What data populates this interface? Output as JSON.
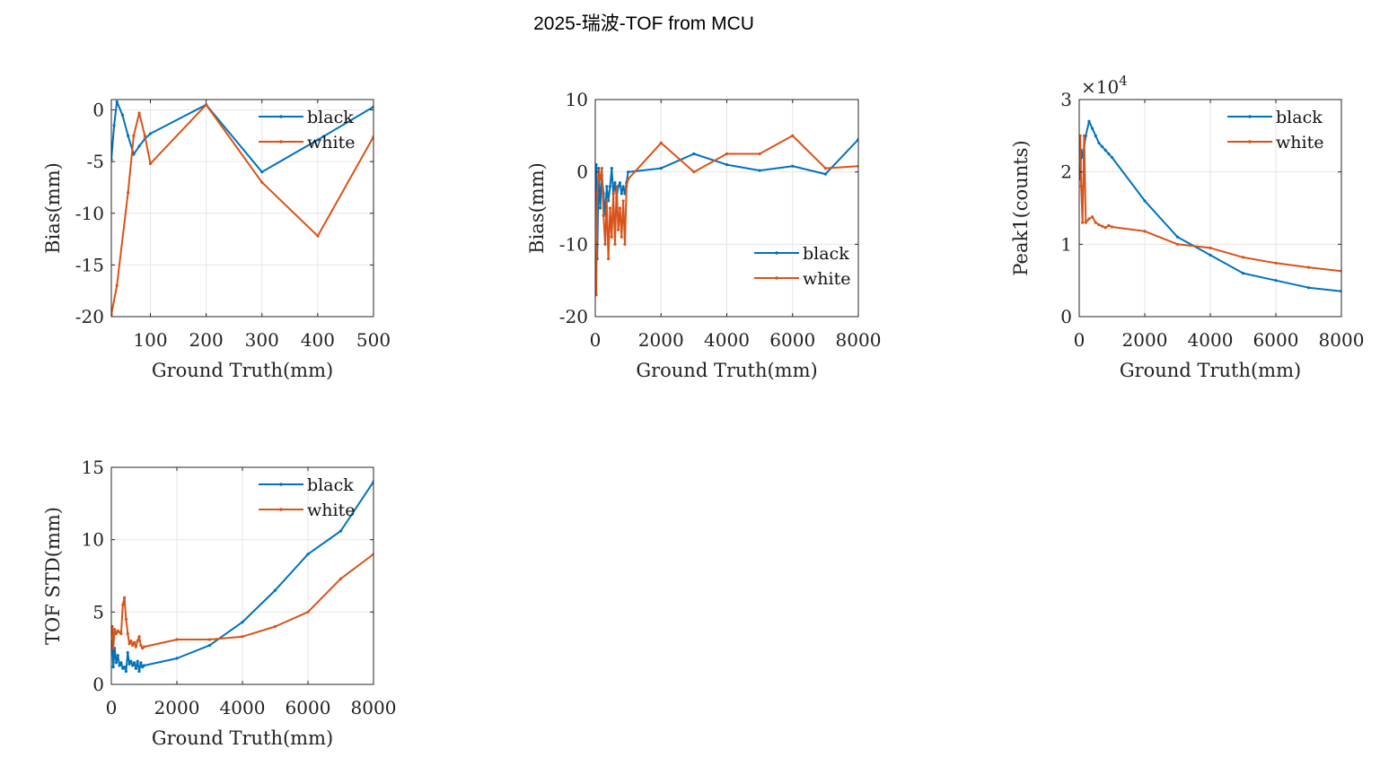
{
  "figure_title": "2025-瑞波-TOF from MCU",
  "colors": {
    "black": "#0072BD",
    "white": "#D95319",
    "grid": "#e6e6e6",
    "axis": "#262626"
  },
  "chart_data": [
    {
      "type": "line",
      "xlabel": "Ground Truth(mm)",
      "ylabel": "Bias(mm)",
      "xlim": [
        30,
        500
      ],
      "ylim": [
        -20,
        1
      ],
      "xticks": [
        100,
        200,
        300,
        400,
        500
      ],
      "yticks": [
        0,
        -5,
        -10,
        -15,
        -20
      ],
      "grid": true,
      "legend_location": "top-right",
      "series": [
        {
          "name": "black",
          "color": "#0072BD",
          "x": [
            30,
            35,
            40,
            50,
            60,
            70,
            80,
            90,
            100,
            200,
            300,
            400,
            500
          ],
          "y": [
            -4.8,
            -1.5,
            0.8,
            -0.5,
            -2.5,
            -4.3,
            -3.5,
            -2.8,
            -2.3,
            0.5,
            -6.0,
            -2.9,
            0.3
          ]
        },
        {
          "name": "white",
          "color": "#D95319",
          "x": [
            30,
            40,
            60,
            70,
            80,
            90,
            100,
            200,
            300,
            400,
            500
          ],
          "y": [
            -19.8,
            -17.0,
            -8.0,
            -2.5,
            -0.3,
            -2.5,
            -5.2,
            0.5,
            -7.0,
            -12.2,
            -2.6
          ]
        }
      ]
    },
    {
      "type": "line",
      "xlabel": "Ground Truth(mm)",
      "ylabel": "Bias(mm)",
      "xlim": [
        0,
        8000
      ],
      "ylim": [
        -20,
        10
      ],
      "xticks": [
        0,
        2000,
        4000,
        6000,
        8000
      ],
      "yticks": [
        10,
        0,
        -10,
        -20
      ],
      "grid": true,
      "legend_location": "bottom-right",
      "series": [
        {
          "name": "black",
          "color": "#0072BD",
          "x": [
            30,
            60,
            100,
            150,
            200,
            250,
            300,
            350,
            400,
            450,
            500,
            550,
            600,
            650,
            700,
            750,
            800,
            850,
            900,
            950,
            1000,
            2000,
            3000,
            4000,
            5000,
            6000,
            7000,
            8000
          ],
          "y": [
            1.0,
            -12.0,
            0.5,
            -5.0,
            -0.5,
            -3.0,
            -6.0,
            -2.0,
            -4.0,
            -2.0,
            0.5,
            -3.0,
            -1.5,
            -3.5,
            -2.0,
            -1.5,
            -3.0,
            -2.0,
            -3.0,
            -1.5,
            0.0,
            0.5,
            2.5,
            1.0,
            0.2,
            0.8,
            -0.3,
            4.5
          ]
        },
        {
          "name": "white",
          "color": "#D95319",
          "x": [
            30,
            60,
            100,
            150,
            200,
            250,
            300,
            350,
            400,
            450,
            500,
            550,
            600,
            650,
            700,
            750,
            800,
            850,
            900,
            950,
            1000,
            2000,
            3000,
            4000,
            5000,
            6000,
            7000,
            8000
          ],
          "y": [
            -17.0,
            -3.0,
            0.0,
            -1.0,
            0.5,
            -6.0,
            -10.0,
            -4.0,
            -12.0,
            -5.0,
            -9.0,
            -3.0,
            -10.0,
            -2.0,
            -8.0,
            -5.0,
            -9.0,
            -4.0,
            -10.0,
            -2.0,
            -1.0,
            4.0,
            0.0,
            2.5,
            2.5,
            5.0,
            0.5,
            0.8
          ]
        }
      ]
    },
    {
      "type": "line",
      "xlabel": "Ground Truth(mm)",
      "ylabel": "Peak1(counts)",
      "xlim": [
        0,
        8000
      ],
      "ylim": [
        0,
        30000
      ],
      "xticks": [
        0,
        2000,
        4000,
        6000,
        8000
      ],
      "yticks": [
        0,
        10000,
        20000,
        30000
      ],
      "ytick_labels": [
        "0",
        "1",
        "2",
        "3"
      ],
      "y_exponent_base": "×10",
      "y_exponent": "4",
      "grid": true,
      "legend_location": "top-right",
      "series": [
        {
          "name": "black",
          "color": "#0072BD",
          "x": [
            30,
            60,
            100,
            200,
            300,
            400,
            500,
            600,
            700,
            800,
            900,
            1000,
            2000,
            3000,
            4000,
            5000,
            6000,
            7000,
            8000
          ],
          "y": [
            19000,
            23000,
            22000,
            25000,
            27000,
            26000,
            25000,
            24000,
            23500,
            23000,
            22500,
            22000,
            16000,
            11000,
            8500,
            6000,
            5000,
            4000,
            3500
          ]
        },
        {
          "name": "white",
          "color": "#D95319",
          "x": [
            30,
            60,
            100,
            150,
            200,
            300,
            400,
            500,
            600,
            700,
            800,
            900,
            1000,
            2000,
            3000,
            4000,
            5000,
            6000,
            7000,
            8000
          ],
          "y": [
            25000,
            18000,
            13000,
            25000,
            13000,
            13500,
            13800,
            13000,
            12700,
            12500,
            12300,
            12600,
            12400,
            11800,
            10000,
            9500,
            8200,
            7400,
            6800,
            6300
          ]
        }
      ]
    },
    {
      "type": "line",
      "xlabel": "Ground Truth(mm)",
      "ylabel": "TOF STD(mm)",
      "xlim": [
        0,
        8000
      ],
      "ylim": [
        0,
        15
      ],
      "xticks": [
        0,
        2000,
        4000,
        6000,
        8000
      ],
      "yticks": [
        0,
        5,
        10,
        15
      ],
      "grid": true,
      "legend_location": "top-right",
      "series": [
        {
          "name": "black",
          "color": "#0072BD",
          "x": [
            30,
            60,
            100,
            150,
            200,
            250,
            300,
            350,
            400,
            450,
            500,
            550,
            600,
            650,
            700,
            750,
            800,
            850,
            900,
            950,
            1000,
            2000,
            3000,
            4000,
            5000,
            6000,
            7000,
            8000
          ],
          "y": [
            3.0,
            1.2,
            2.5,
            1.5,
            2.0,
            1.3,
            1.5,
            1.1,
            1.2,
            0.9,
            2.2,
            1.4,
            1.6,
            1.3,
            1.5,
            1.1,
            1.6,
            0.9,
            1.5,
            1.2,
            1.3,
            1.8,
            2.7,
            4.3,
            6.5,
            9.0,
            10.6,
            14.0
          ]
        },
        {
          "name": "white",
          "color": "#D95319",
          "x": [
            30,
            60,
            100,
            150,
            200,
            250,
            300,
            350,
            400,
            450,
            500,
            550,
            600,
            650,
            700,
            750,
            800,
            850,
            900,
            950,
            1000,
            2000,
            3000,
            4000,
            5000,
            6000,
            7000,
            8000
          ],
          "y": [
            4.0,
            2.5,
            3.8,
            3.5,
            3.7,
            3.6,
            3.5,
            5.5,
            6.0,
            4.5,
            3.5,
            2.8,
            3.0,
            2.7,
            2.9,
            2.6,
            3.0,
            3.3,
            2.7,
            2.5,
            2.6,
            3.1,
            3.1,
            3.3,
            4.0,
            5.0,
            7.3,
            9.0
          ]
        }
      ]
    }
  ]
}
